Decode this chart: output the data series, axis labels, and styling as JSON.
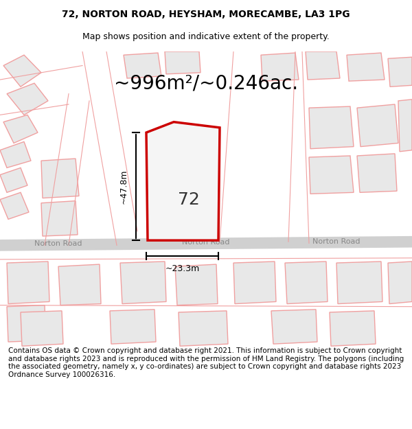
{
  "title_line1": "72, NORTON ROAD, HEYSHAM, MORECAMBE, LA3 1PG",
  "title_line2": "Map shows position and indicative extent of the property.",
  "area_text": "~996m²/~0.246ac.",
  "dim_height": "~47.8m",
  "dim_width": "~23.3m",
  "property_number": "72",
  "road_label": "Norton Road",
  "footer_text": "Contains OS data © Crown copyright and database right 2021. This information is subject to Crown copyright and database rights 2023 and is reproduced with the permission of HM Land Registry. The polygons (including the associated geometry, namely x, y co-ordinates) are subject to Crown copyright and database rights 2023 Ordnance Survey 100026316.",
  "bg_color": "#ffffff",
  "map_bg_color": "#ffffff",
  "road_color": "#d0d0d0",
  "building_fill": "#e8e8e8",
  "building_stroke": "#f0a0a0",
  "highlight_fill": "#f5f5f5",
  "highlight_stroke": "#cc0000",
  "dim_color": "#000000",
  "road_line_color": "#c8c8c8",
  "title_fontsize": 10,
  "subtitle_fontsize": 9,
  "area_fontsize": 20,
  "dim_fontsize": 9,
  "property_num_fontsize": 18,
  "road_fontsize": 8,
  "footer_fontsize": 7.5
}
